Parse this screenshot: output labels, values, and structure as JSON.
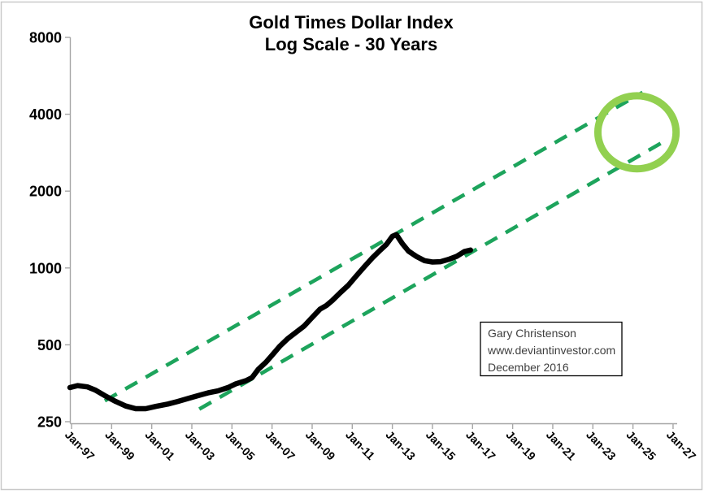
{
  "window": {
    "background": "#ffffff",
    "border_color": "#c9c9c9"
  },
  "chart_data": {
    "type": "line",
    "title": "Gold Times Dollar Index",
    "subtitle": "Log Scale - 30 Years",
    "scale": "log",
    "grid": "off",
    "axis_color": "#a6a6a6",
    "label_color": "#000000",
    "x_axis": {
      "ticks": [
        {
          "year": 1997,
          "label": "Jan-97"
        },
        {
          "year": 1999,
          "label": "Jan-99"
        },
        {
          "year": 2001,
          "label": "Jan-01"
        },
        {
          "year": 2003,
          "label": "Jan-03"
        },
        {
          "year": 2005,
          "label": "Jan-05"
        },
        {
          "year": 2007,
          "label": "Jan-07"
        },
        {
          "year": 2009,
          "label": "Jan-09"
        },
        {
          "year": 2011,
          "label": "Jan-11"
        },
        {
          "year": 2013,
          "label": "Jan-13"
        },
        {
          "year": 2015,
          "label": "Jan-15"
        },
        {
          "year": 2017,
          "label": "Jan-17"
        },
        {
          "year": 2019,
          "label": "Jan-19"
        },
        {
          "year": 2021,
          "label": "Jan-21"
        },
        {
          "year": 2023,
          "label": "Jan-23"
        },
        {
          "year": 2025,
          "label": "Jan-25"
        },
        {
          "year": 2027,
          "label": "Jan-27"
        }
      ]
    },
    "y_axis": {
      "ticks": [
        8000,
        4000,
        2000,
        1000,
        500,
        250
      ],
      "min": 250,
      "max": 8000
    },
    "series": [
      {
        "name": "gold-times-dollar-index",
        "color": "#000000",
        "points": [
          [
            1996.92,
            340
          ],
          [
            1997.3,
            346
          ],
          [
            1997.8,
            342
          ],
          [
            1998.2,
            332
          ],
          [
            1998.7,
            315
          ],
          [
            1999.2,
            300
          ],
          [
            1999.7,
            288
          ],
          [
            2000.2,
            281
          ],
          [
            2000.7,
            281
          ],
          [
            2001.2,
            287
          ],
          [
            2001.8,
            293
          ],
          [
            2002.3,
            300
          ],
          [
            2002.8,
            308
          ],
          [
            2003.3,
            316
          ],
          [
            2003.8,
            324
          ],
          [
            2004.3,
            330
          ],
          [
            2004.8,
            340
          ],
          [
            2005.2,
            352
          ],
          [
            2005.7,
            362
          ],
          [
            2006.0,
            372
          ],
          [
            2006.3,
            400
          ],
          [
            2006.7,
            428
          ],
          [
            2007.0,
            455
          ],
          [
            2007.4,
            495
          ],
          [
            2007.8,
            530
          ],
          [
            2008.2,
            560
          ],
          [
            2008.6,
            592
          ],
          [
            2009.0,
            640
          ],
          [
            2009.4,
            690
          ],
          [
            2009.7,
            712
          ],
          [
            2010.0,
            745
          ],
          [
            2010.4,
            800
          ],
          [
            2010.8,
            855
          ],
          [
            2011.2,
            930
          ],
          [
            2011.6,
            1010
          ],
          [
            2012.0,
            1095
          ],
          [
            2012.4,
            1175
          ],
          [
            2012.7,
            1235
          ],
          [
            2013.0,
            1330
          ],
          [
            2013.2,
            1350
          ],
          [
            2013.5,
            1245
          ],
          [
            2013.8,
            1165
          ],
          [
            2014.2,
            1110
          ],
          [
            2014.6,
            1068
          ],
          [
            2015.0,
            1055
          ],
          [
            2015.4,
            1058
          ],
          [
            2015.8,
            1080
          ],
          [
            2016.2,
            1110
          ],
          [
            2016.6,
            1160
          ],
          [
            2016.9,
            1175
          ]
        ]
      }
    ],
    "trend_channel": {
      "color": "#1da45c",
      "style": "dashed",
      "upper": {
        "x1": 1998.66,
        "v1": 302,
        "x2": 2025.48,
        "v2": 4870
      },
      "lower": {
        "x1": 2003.37,
        "v1": 280,
        "x2": 2026.76,
        "v2": 3200
      }
    },
    "annotation_circle": {
      "color": "#92d050",
      "center_year": 2025.2,
      "center_value": 3400,
      "radius_years": 1.95,
      "radius_value_factor": 1.39
    },
    "note_box": {
      "lines": [
        "Gary Christenson",
        "www.deviantinvestor.com",
        "December 2016"
      ]
    }
  }
}
